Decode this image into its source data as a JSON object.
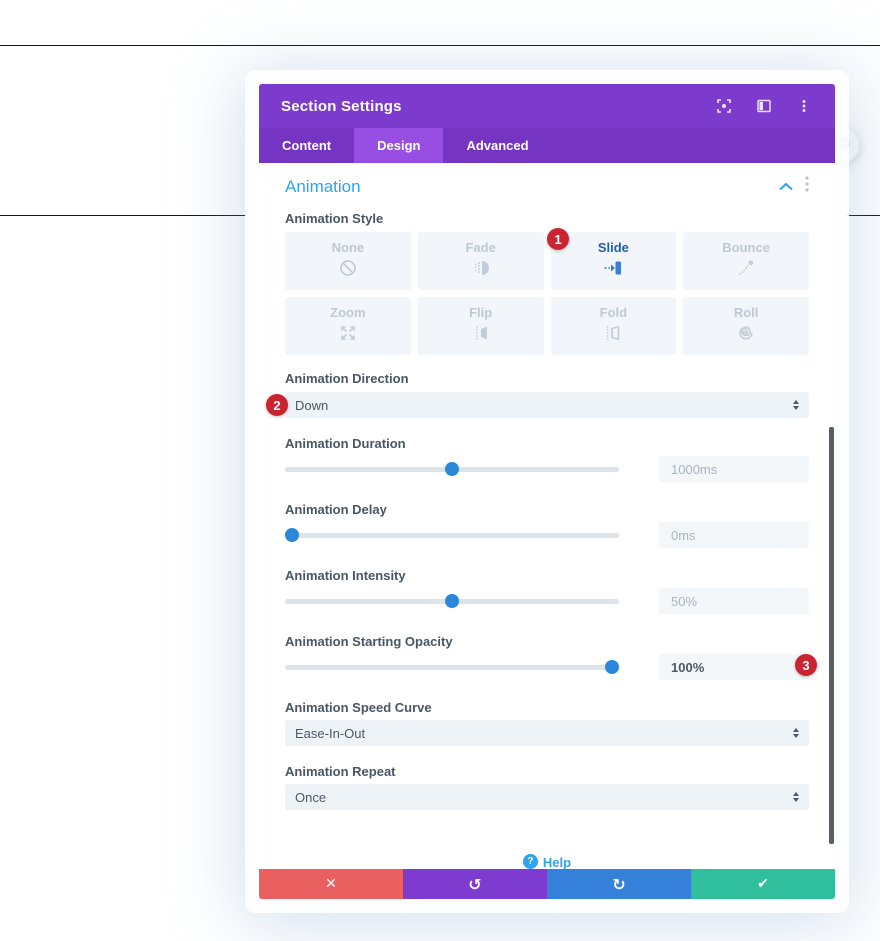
{
  "modal": {
    "title": "Section Settings",
    "tabs": [
      {
        "label": "Content",
        "active": false
      },
      {
        "label": "Design",
        "active": true
      },
      {
        "label": "Advanced",
        "active": false
      }
    ],
    "section": {
      "title": "Animation",
      "style": {
        "label": "Animation Style",
        "options": [
          {
            "label": "None",
            "icon": "none-icon",
            "selected": false
          },
          {
            "label": "Fade",
            "icon": "fade-icon",
            "selected": false
          },
          {
            "label": "Slide",
            "icon": "slide-icon",
            "selected": true
          },
          {
            "label": "Bounce",
            "icon": "bounce-icon",
            "selected": false
          },
          {
            "label": "Zoom",
            "icon": "zoom-icon",
            "selected": false
          },
          {
            "label": "Flip",
            "icon": "flip-icon",
            "selected": false
          },
          {
            "label": "Fold",
            "icon": "fold-icon",
            "selected": false
          },
          {
            "label": "Roll",
            "icon": "roll-icon",
            "selected": false
          }
        ]
      },
      "direction": {
        "label": "Animation Direction",
        "value": "Down"
      },
      "duration": {
        "label": "Animation Duration",
        "value": "1000ms",
        "percent": 50
      },
      "delay": {
        "label": "Animation Delay",
        "value": "0ms",
        "percent": 2
      },
      "intensity": {
        "label": "Animation Intensity",
        "value": "50%",
        "percent": 50
      },
      "starting_opacity": {
        "label": "Animation Starting Opacity",
        "value": "100%",
        "percent": 98
      },
      "speed_curve": {
        "label": "Animation Speed Curve",
        "value": "Ease-In-Out"
      },
      "repeat": {
        "label": "Animation Repeat",
        "value": "Once"
      }
    },
    "help_label": "Help"
  },
  "annotations": {
    "badges": [
      "1",
      "2",
      "3"
    ]
  },
  "colors": {
    "header_purple": "#7d3bcd",
    "tabs_purple": "#7535c2",
    "active_tab_purple": "#974fe3",
    "heading_blue": "#2ea3f2",
    "accent_blue": "#2b87da",
    "badge_red": "#cb2431",
    "label_gray": "#4a5664",
    "footer_close_red": "#ea5f5f",
    "footer_undo_purple": "#7e3bd0",
    "footer_redo_blue": "#3581da",
    "footer_save_green": "#2fbf9d"
  }
}
